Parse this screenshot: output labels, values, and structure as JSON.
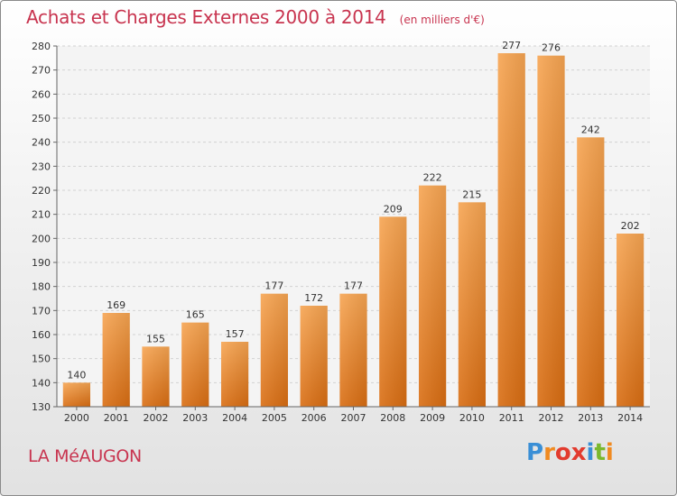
{
  "chart_data": {
    "type": "bar",
    "title": "Achats et Charges Externes 2000 à 2014",
    "unit": "(en milliers d'€)",
    "categories": [
      "2000",
      "2001",
      "2002",
      "2003",
      "2004",
      "2005",
      "2006",
      "2007",
      "2008",
      "2009",
      "2010",
      "2011",
      "2012",
      "2013",
      "2014"
    ],
    "values": [
      140,
      169,
      155,
      165,
      157,
      177,
      172,
      177,
      209,
      222,
      215,
      277,
      276,
      242,
      202
    ],
    "ylim": [
      130,
      280
    ],
    "yticks": [
      130,
      140,
      150,
      160,
      170,
      180,
      190,
      200,
      210,
      220,
      230,
      240,
      250,
      260,
      270,
      280
    ],
    "grid": true,
    "bar_color": "#f0923a"
  },
  "place": "LA MéAUGON",
  "logo": {
    "text": "Proxiti",
    "letter_colors": [
      "#3a8fd6",
      "#f08a20",
      "#e23b2e",
      "#e23b2e",
      "#3a8fd6",
      "#7ab82e",
      "#f08a20"
    ]
  }
}
